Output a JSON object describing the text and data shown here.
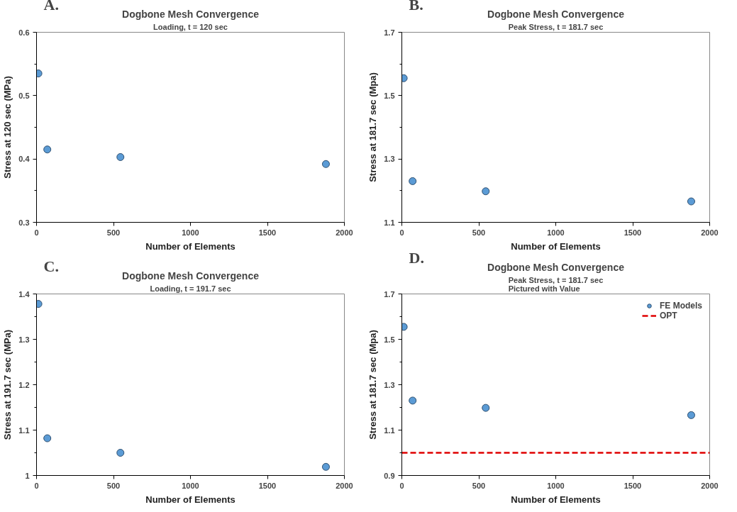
{
  "chart_data": [
    {
      "type": "scatter",
      "title": "Dogbone Mesh Convergence",
      "subtitle": "Loading, t = 120 sec",
      "annotations": [
        "A."
      ],
      "xlabel": "Number of Elements",
      "ylabel": "Stress at 120 sec (MPa)",
      "x": [
        12,
        70,
        545,
        1880
      ],
      "series": [
        {
          "color": "#5b9bd5",
          "values": [
            0.535,
            0.415,
            0.403,
            0.392
          ]
        }
      ],
      "xlim": [
        0,
        2000
      ],
      "xticks": [
        0,
        500,
        1000,
        1500,
        2000
      ],
      "ylim": [
        0.3,
        0.6
      ],
      "yticks": [
        0.3,
        {
          "value": 0.35,
          "label": null
        },
        0.4,
        {
          "value": 0.45,
          "label": null
        },
        0.5,
        {
          "value": 0.55,
          "label": null
        },
        0.6
      ],
      "grid": false,
      "marker": "circle",
      "legend": false
    },
    {
      "type": "scatter",
      "title": "Dogbone Mesh Convergence",
      "subtitle": "Peak Stress, t = 181.7 sec",
      "annotations": [
        "B."
      ],
      "xlabel": "Number of Elements",
      "ylabel": "Stress at 181.7 sec (Mpa)",
      "x": [
        12,
        70,
        545,
        1880
      ],
      "series": [
        {
          "color": "#5b9bd5",
          "values": [
            1.555,
            1.23,
            1.198,
            1.166
          ]
        }
      ],
      "xlim": [
        0,
        2000
      ],
      "xticks": [
        0,
        500,
        1000,
        1500,
        2000
      ],
      "ylim": [
        1.1,
        1.7
      ],
      "yticks": [
        1.1,
        {
          "value": 1.2,
          "label": null
        },
        1.3,
        {
          "value": 1.4,
          "label": null
        },
        1.5,
        {
          "value": 1.6,
          "label": null
        },
        1.7
      ],
      "grid": false,
      "marker": "circle",
      "legend": false
    },
    {
      "type": "scatter",
      "title": "Dogbone Mesh Convergence",
      "subtitle": "Loading, t = 191.7 sec",
      "annotations": [
        "C."
      ],
      "xlabel": "Number of Elements",
      "ylabel": "Stress at 191.7 sec (MPa)",
      "x": [
        12,
        70,
        545,
        1880
      ],
      "series": [
        {
          "color": "#5b9bd5",
          "values": [
            1.378,
            1.082,
            1.05,
            1.019
          ]
        }
      ],
      "xlim": [
        0,
        2000
      ],
      "xticks": [
        0,
        500,
        1000,
        1500,
        2000
      ],
      "ylim": [
        1,
        1.4
      ],
      "yticks": [
        1,
        {
          "value": 1.05,
          "label": null
        },
        1.1,
        {
          "value": 1.15,
          "label": null
        },
        1.2,
        {
          "value": 1.25,
          "label": null
        },
        1.3,
        {
          "value": 1.35,
          "label": null
        },
        1.4
      ],
      "grid": false,
      "marker": "circle",
      "legend": false
    },
    {
      "type": "scatter",
      "title": "Dogbone Mesh Convergence",
      "subtitle": "Peak Stress, t = 181.7 sec\nPictured with Value",
      "annotations": [
        "D."
      ],
      "xlabel": "Number of Elements",
      "ylabel": "Stress at 181.7 sec (Mpa)",
      "x": [
        12,
        70,
        545,
        1880
      ],
      "series": [
        {
          "name": "FE Models",
          "color": "#5b9bd5",
          "values": [
            1.555,
            1.23,
            1.198,
            1.166
          ]
        }
      ],
      "ref_lines": [
        {
          "axis": "y",
          "value": 1.0,
          "label": "OPT",
          "color": "#e00000",
          "line_style": "dashed"
        }
      ],
      "xlim": [
        0,
        2000
      ],
      "xticks": [
        0,
        500,
        1000,
        1500,
        2000
      ],
      "ylim": [
        0.9,
        1.7
      ],
      "yticks": [
        0.9,
        {
          "value": 1.0,
          "label": null
        },
        1.1,
        {
          "value": 1.2,
          "label": null
        },
        1.3,
        {
          "value": 1.4,
          "label": null
        },
        1.5,
        {
          "value": 1.6,
          "label": null
        },
        1.7
      ],
      "grid": false,
      "marker": "circle",
      "legend": "top right"
    }
  ]
}
